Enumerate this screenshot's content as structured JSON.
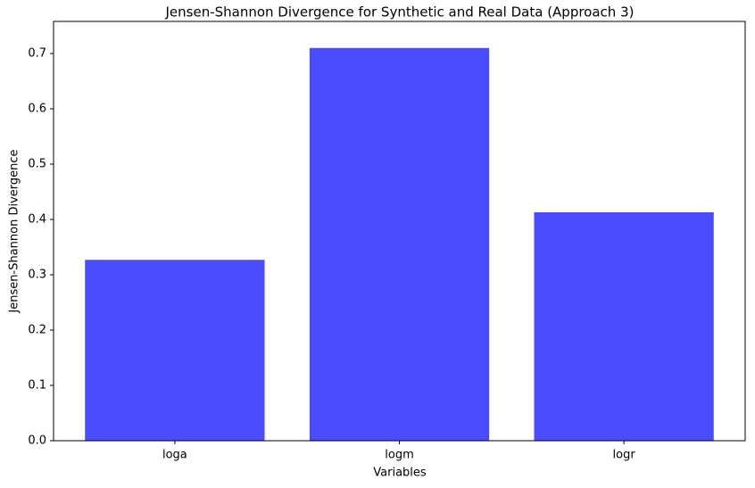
{
  "chart_data": {
    "type": "bar",
    "title": "Jensen-Shannon Divergence for Synthetic and Real Data (Approach 3)",
    "x_label": "Variables",
    "y_label": "Jensen-Shannon Divergence",
    "categories": [
      "loga",
      "logm",
      "logr"
    ],
    "values": [
      0.327,
      0.71,
      0.413
    ],
    "color": "#4c4cff",
    "ylim": [
      0,
      0.758
    ],
    "yticks": [
      {
        "value": 0,
        "label": "0.0"
      },
      0.1,
      0.2,
      0.3,
      0.4,
      0.5,
      0.6,
      0.7
    ]
  }
}
